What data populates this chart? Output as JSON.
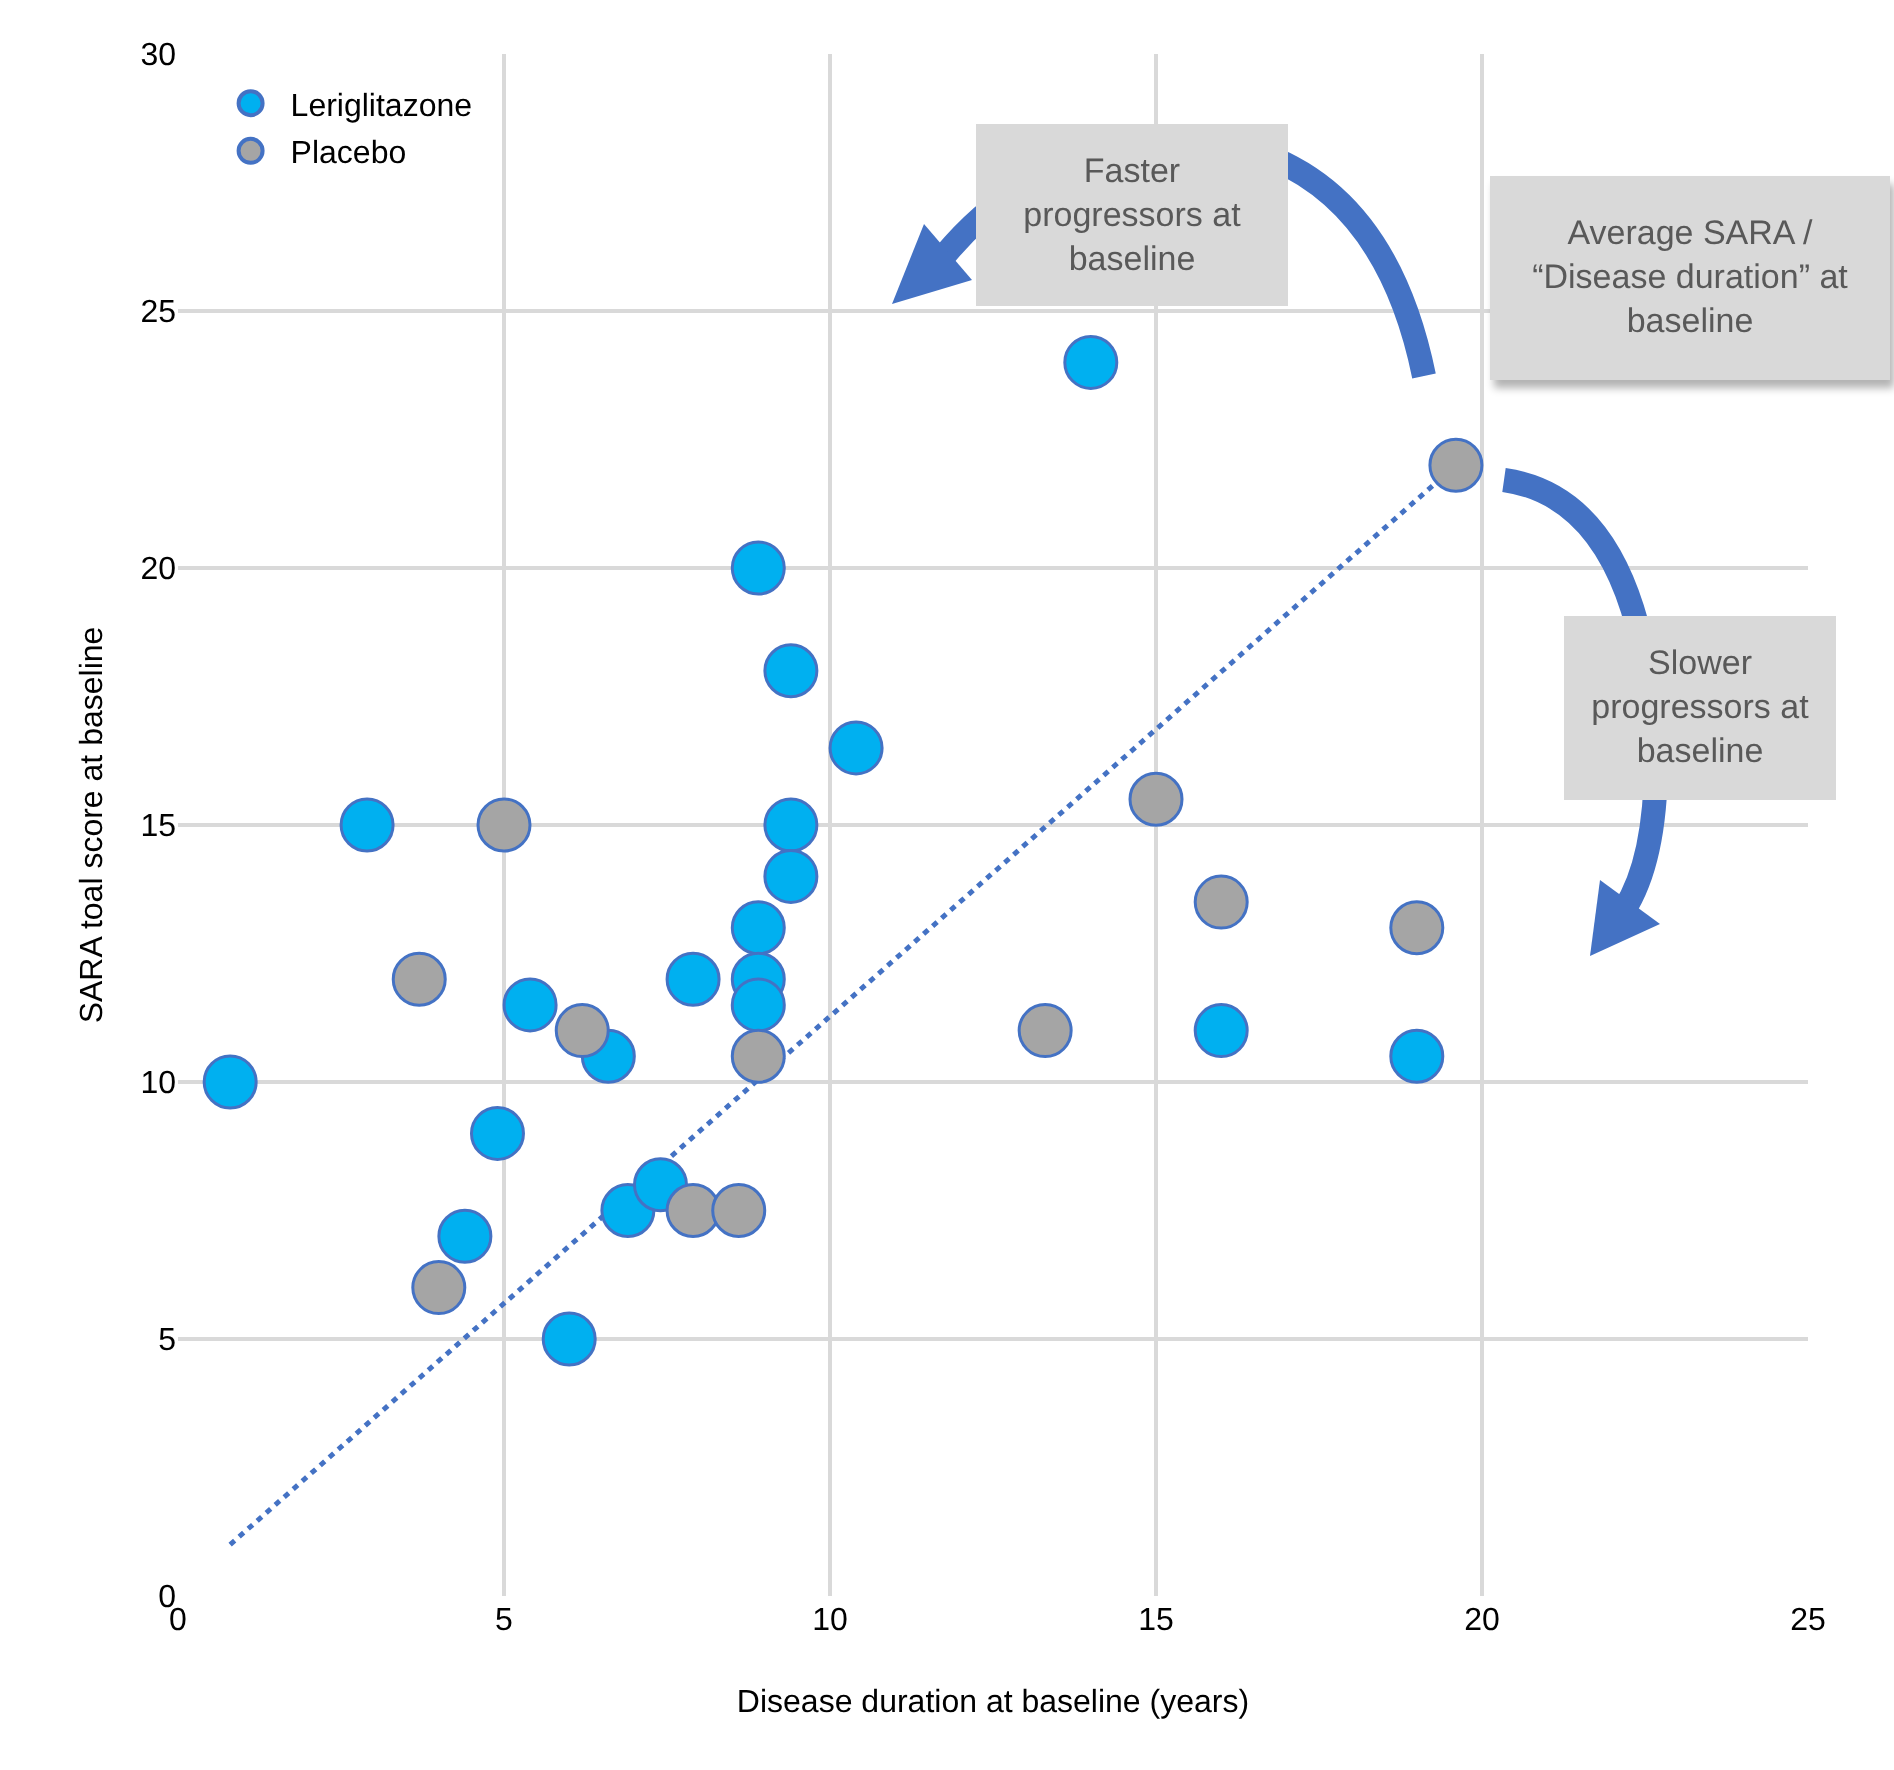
{
  "chart_data": {
    "type": "scatter",
    "xlabel": "Disease duration at baseline (years)",
    "ylabel": "SARA toal score at baseline",
    "xlim": [
      0,
      25
    ],
    "xticks": [
      0,
      5,
      10,
      15,
      20,
      25
    ],
    "ylim": [
      0,
      30
    ],
    "yticks": [
      0,
      5,
      10,
      15,
      20,
      25,
      30
    ],
    "grid": true,
    "legend": "top left",
    "marker": "circle",
    "series": [
      {
        "name": "Leriglitazone",
        "color": "#00b0f0",
        "x": [
          0.8,
          2.9,
          4.9,
          4.4,
          5.4,
          6.0,
          6.6,
          6.9,
          7.4,
          7.9,
          8.9,
          9.4,
          10.4,
          9.4,
          9.4,
          8.9,
          8.9,
          8.9,
          14,
          16,
          19
        ],
        "values": [
          10,
          15,
          9,
          7,
          11.5,
          5,
          10.5,
          7.5,
          8,
          12,
          20,
          18,
          16.5,
          15,
          14,
          13,
          12,
          11.5,
          24,
          11,
          10.5
        ]
      },
      {
        "name": "Placebo",
        "color": "#a5a5a5",
        "x": [
          5,
          3.7,
          4,
          6.2,
          7.9,
          8.6,
          8.9,
          13.3,
          15,
          16,
          19,
          19.6
        ],
        "values": [
          15,
          12,
          6,
          11,
          7.5,
          7.5,
          10.5,
          11,
          15.5,
          13.5,
          13,
          22
        ]
      },
      {
        "type": "line",
        "color": "#4472c4",
        "line_style": "dotted",
        "marker": "none",
        "x": [
          0.8,
          19.6
        ],
        "values": [
          1,
          22
        ]
      }
    ],
    "annotations": [
      "Faster progressors at baseline",
      "Average SARA / “Disease duration” at baseline",
      "Slower progressors at baseline"
    ]
  }
}
